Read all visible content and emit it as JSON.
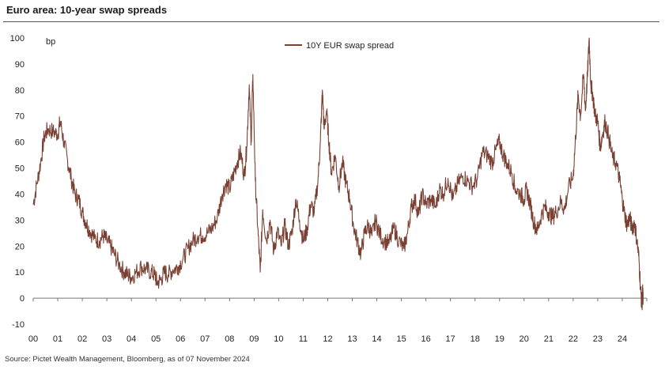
{
  "header": {
    "title": "Euro area: 10-year swap spreads"
  },
  "footer": {
    "source": "Source: Pictet Wealth Management, Bloomberg, as of 07 November 2024"
  },
  "colors": {
    "series": "#7a4033",
    "axis": "#333333",
    "zero_line": "#777777"
  },
  "chart_data": {
    "type": "line",
    "title": "Euro area: 10-year swap spreads",
    "ylabel": "bp",
    "xlabel": "",
    "ylim": [
      -10,
      100
    ],
    "yticks": [
      -10,
      0,
      10,
      20,
      30,
      40,
      50,
      60,
      70,
      80,
      90,
      100
    ],
    "xlim": [
      2000.0,
      2025.0
    ],
    "xtick_labels": [
      "00",
      "01",
      "02",
      "03",
      "04",
      "05",
      "06",
      "07",
      "08",
      "09",
      "10",
      "11",
      "12",
      "13",
      "14",
      "15",
      "16",
      "17",
      "18",
      "19",
      "20",
      "21",
      "22",
      "23",
      "24"
    ],
    "legend": {
      "position": "top-center",
      "entries": [
        "10Y EUR swap spread"
      ]
    },
    "series": [
      {
        "name": "10Y EUR swap spread",
        "points": [
          [
            2000.0,
            36
          ],
          [
            2000.15,
            44
          ],
          [
            2000.3,
            52
          ],
          [
            2000.45,
            62
          ],
          [
            2000.6,
            65
          ],
          [
            2000.8,
            64
          ],
          [
            2001.0,
            63
          ],
          [
            2001.1,
            68
          ],
          [
            2001.25,
            60
          ],
          [
            2001.4,
            53
          ],
          [
            2001.55,
            46
          ],
          [
            2001.7,
            40
          ],
          [
            2001.85,
            38
          ],
          [
            2002.0,
            33
          ],
          [
            2002.15,
            29
          ],
          [
            2002.3,
            26
          ],
          [
            2002.5,
            23
          ],
          [
            2002.7,
            22
          ],
          [
            2002.85,
            24
          ],
          [
            2003.0,
            22
          ],
          [
            2003.15,
            20
          ],
          [
            2003.3,
            17
          ],
          [
            2003.5,
            13
          ],
          [
            2003.7,
            10
          ],
          [
            2003.85,
            9
          ],
          [
            2004.0,
            8
          ],
          [
            2004.2,
            10
          ],
          [
            2004.4,
            12
          ],
          [
            2004.6,
            11
          ],
          [
            2004.8,
            10
          ],
          [
            2004.95,
            9
          ],
          [
            2005.05,
            6
          ],
          [
            2005.2,
            7
          ],
          [
            2005.35,
            10
          ],
          [
            2005.5,
            9
          ],
          [
            2005.7,
            11
          ],
          [
            2005.9,
            12
          ],
          [
            2006.1,
            15
          ],
          [
            2006.3,
            19
          ],
          [
            2006.5,
            22
          ],
          [
            2006.7,
            24
          ],
          [
            2006.9,
            24
          ],
          [
            2007.1,
            25
          ],
          [
            2007.3,
            27
          ],
          [
            2007.5,
            31
          ],
          [
            2007.7,
            40
          ],
          [
            2007.85,
            44
          ],
          [
            2008.0,
            42
          ],
          [
            2008.15,
            47
          ],
          [
            2008.3,
            52
          ],
          [
            2008.45,
            56
          ],
          [
            2008.6,
            47
          ],
          [
            2008.7,
            58
          ],
          [
            2008.8,
            82
          ],
          [
            2008.88,
            60
          ],
          [
            2008.95,
            86
          ],
          [
            2009.05,
            45
          ],
          [
            2009.15,
            27
          ],
          [
            2009.25,
            10
          ],
          [
            2009.35,
            34
          ],
          [
            2009.5,
            22
          ],
          [
            2009.65,
            30
          ],
          [
            2009.8,
            18
          ],
          [
            2009.95,
            26
          ],
          [
            2010.1,
            20
          ],
          [
            2010.25,
            28
          ],
          [
            2010.4,
            20
          ],
          [
            2010.55,
            26
          ],
          [
            2010.7,
            38
          ],
          [
            2010.85,
            30
          ],
          [
            2011.0,
            22
          ],
          [
            2011.15,
            26
          ],
          [
            2011.3,
            36
          ],
          [
            2011.45,
            33
          ],
          [
            2011.6,
            45
          ],
          [
            2011.7,
            60
          ],
          [
            2011.78,
            80
          ],
          [
            2011.85,
            65
          ],
          [
            2011.95,
            72
          ],
          [
            2012.05,
            60
          ],
          [
            2012.15,
            48
          ],
          [
            2012.3,
            55
          ],
          [
            2012.45,
            43
          ],
          [
            2012.6,
            52
          ],
          [
            2012.75,
            44
          ],
          [
            2012.9,
            38
          ],
          [
            2013.05,
            28
          ],
          [
            2013.2,
            22
          ],
          [
            2013.35,
            17
          ],
          [
            2013.5,
            25
          ],
          [
            2013.65,
            28
          ],
          [
            2013.8,
            24
          ],
          [
            2013.95,
            30
          ],
          [
            2014.1,
            25
          ],
          [
            2014.3,
            22
          ],
          [
            2014.5,
            21
          ],
          [
            2014.7,
            27
          ],
          [
            2014.9,
            22
          ],
          [
            2015.1,
            19
          ],
          [
            2015.25,
            25
          ],
          [
            2015.4,
            35
          ],
          [
            2015.55,
            38
          ],
          [
            2015.7,
            32
          ],
          [
            2015.85,
            40
          ],
          [
            2016.0,
            36
          ],
          [
            2016.2,
            38
          ],
          [
            2016.4,
            35
          ],
          [
            2016.55,
            42
          ],
          [
            2016.7,
            40
          ],
          [
            2016.9,
            46
          ],
          [
            2017.1,
            38
          ],
          [
            2017.3,
            44
          ],
          [
            2017.5,
            47
          ],
          [
            2017.7,
            45
          ],
          [
            2017.9,
            43
          ],
          [
            2018.1,
            46
          ],
          [
            2018.3,
            56
          ],
          [
            2018.5,
            55
          ],
          [
            2018.7,
            52
          ],
          [
            2018.85,
            57
          ],
          [
            2019.0,
            60
          ],
          [
            2019.15,
            55
          ],
          [
            2019.3,
            52
          ],
          [
            2019.5,
            48
          ],
          [
            2019.65,
            42
          ],
          [
            2019.85,
            40
          ],
          [
            2020.0,
            38
          ],
          [
            2020.1,
            42
          ],
          [
            2020.25,
            36
          ],
          [
            2020.4,
            29
          ],
          [
            2020.55,
            26
          ],
          [
            2020.7,
            32
          ],
          [
            2020.85,
            35
          ],
          [
            2021.0,
            33
          ],
          [
            2021.15,
            31
          ],
          [
            2021.3,
            33
          ],
          [
            2021.5,
            37
          ],
          [
            2021.65,
            34
          ],
          [
            2021.8,
            42
          ],
          [
            2022.0,
            47
          ],
          [
            2022.1,
            62
          ],
          [
            2022.2,
            78
          ],
          [
            2022.3,
            70
          ],
          [
            2022.42,
            86
          ],
          [
            2022.5,
            72
          ],
          [
            2022.58,
            85
          ],
          [
            2022.65,
            100
          ],
          [
            2022.72,
            82
          ],
          [
            2022.8,
            78
          ],
          [
            2022.9,
            70
          ],
          [
            2023.0,
            68
          ],
          [
            2023.1,
            58
          ],
          [
            2023.2,
            63
          ],
          [
            2023.3,
            68
          ],
          [
            2023.45,
            62
          ],
          [
            2023.6,
            54
          ],
          [
            2023.75,
            52
          ],
          [
            2023.9,
            45
          ],
          [
            2024.0,
            38
          ],
          [
            2024.1,
            32
          ],
          [
            2024.2,
            28
          ],
          [
            2024.3,
            31
          ],
          [
            2024.4,
            27
          ],
          [
            2024.5,
            29
          ],
          [
            2024.6,
            22
          ],
          [
            2024.68,
            15
          ],
          [
            2024.75,
            3
          ],
          [
            2024.8,
            -3
          ],
          [
            2024.83,
            3
          ],
          [
            2024.85,
            -1
          ]
        ]
      }
    ]
  }
}
